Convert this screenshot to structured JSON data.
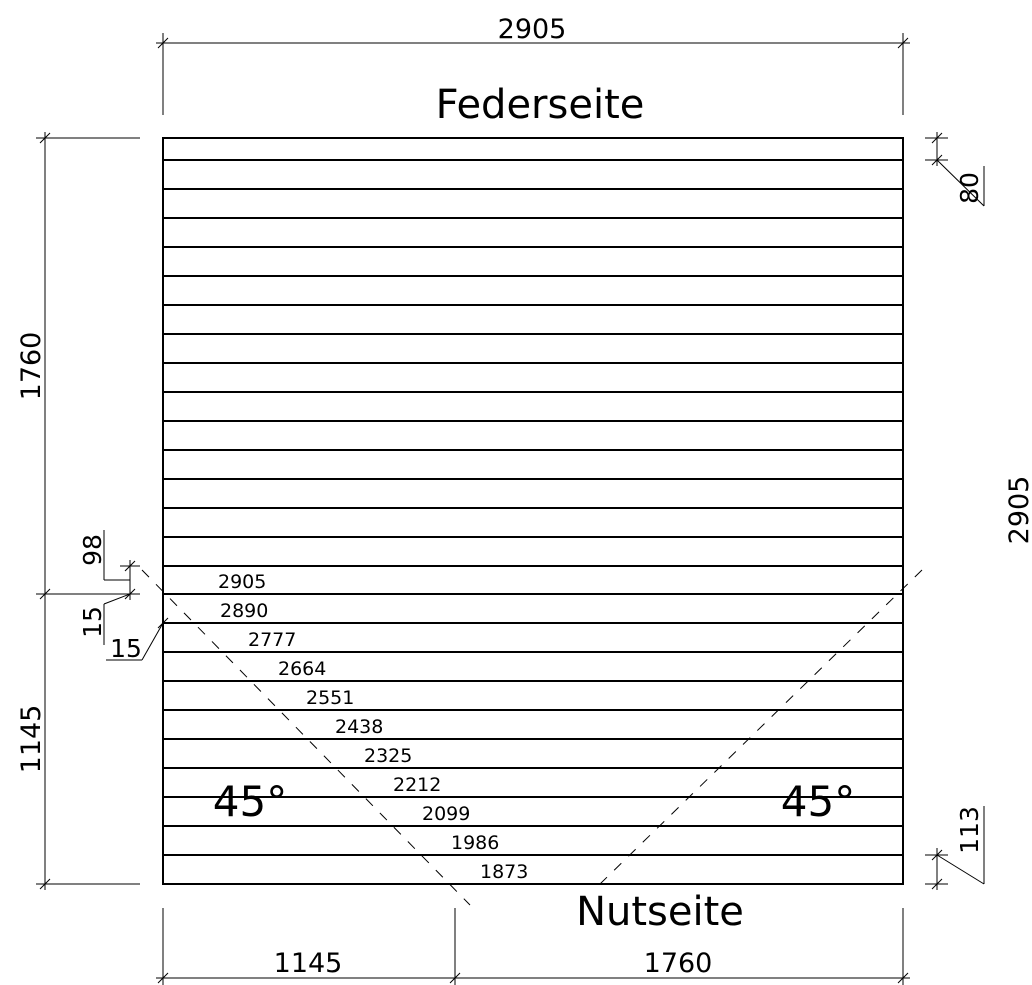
{
  "labels": {
    "tongue_side": "Federseite",
    "groove_side": "Nutseite",
    "angle_left": "45°",
    "angle_right": "45°"
  },
  "dimensions": {
    "top_width": "2905",
    "right_total": "2905",
    "left_upper": "1760",
    "left_lower": "1145",
    "bottom_left": "1145",
    "bottom_right": "1760",
    "board_width_top": "80",
    "board_width_bottom": "113",
    "offset_98": "98",
    "offset_15_a": "15",
    "offset_15_b": "15"
  },
  "cut_lengths": [
    "2905",
    "2890",
    "2777",
    "2664",
    "2551",
    "2438",
    "2325",
    "2212",
    "2099",
    "1986",
    "1873"
  ]
}
